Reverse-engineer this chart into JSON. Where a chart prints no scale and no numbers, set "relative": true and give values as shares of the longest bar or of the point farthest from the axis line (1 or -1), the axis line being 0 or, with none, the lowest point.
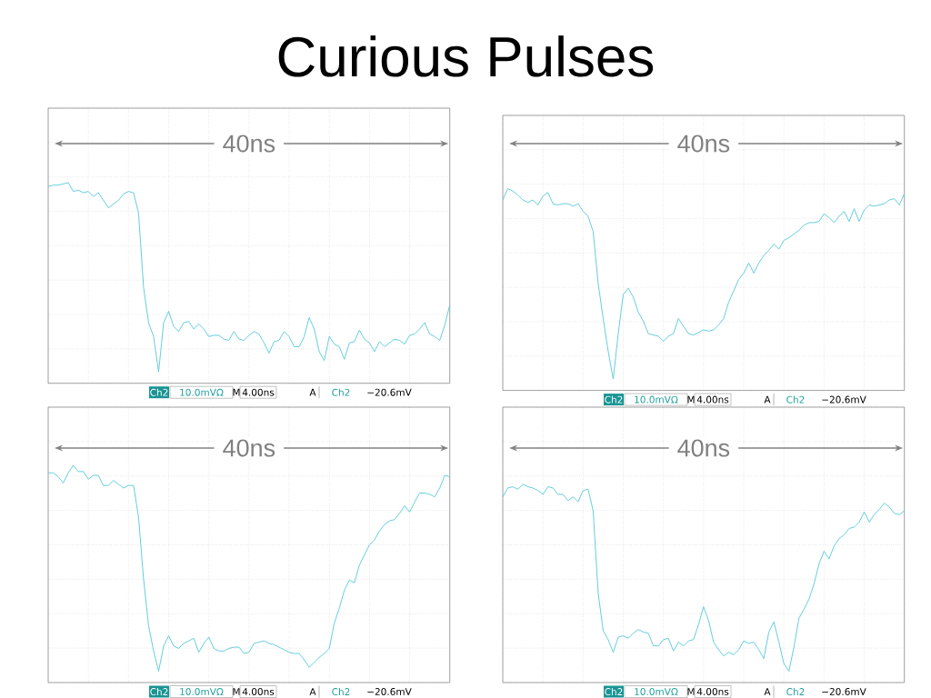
{
  "chart_data": [
    {
      "type": "line",
      "title": "Curious Pulses",
      "relative": true,
      "grid": true,
      "categories": [
        null,
        null,
        null,
        null,
        null,
        null,
        null,
        null,
        null,
        null,
        null,
        null,
        null,
        null,
        null,
        null,
        null,
        null,
        null,
        null,
        null,
        null,
        null,
        null,
        null,
        null,
        null,
        null,
        null,
        null,
        null,
        null,
        null,
        null,
        null,
        null,
        null,
        null,
        null,
        null,
        null,
        null,
        null,
        null,
        null,
        null,
        null,
        null,
        null,
        null,
        null,
        null,
        null,
        null,
        null,
        null,
        null,
        null,
        null,
        null,
        null,
        null,
        null,
        null,
        null,
        null,
        null,
        null,
        null,
        null,
        null,
        null,
        null,
        null,
        null,
        null,
        null,
        null,
        null,
        null,
        null
      ],
      "series": [
        {
          "color": "#55c8d8",
          "values": [
            0.47,
            0.48,
            0.48,
            0.49,
            0.5,
            0.43,
            0.44,
            0.42,
            0.43,
            0.39,
            0.42,
            0.36,
            0.3,
            0.33,
            0.36,
            0.41,
            0.43,
            0.42,
            0.26,
            -0.33,
            -0.61,
            -0.72,
            -1.0,
            -0.61,
            -0.52,
            -0.64,
            -0.68,
            -0.61,
            -0.6,
            -0.66,
            -0.62,
            -0.66,
            -0.72,
            -0.71,
            -0.71,
            -0.74,
            -0.75,
            -0.68,
            -0.74,
            -0.75,
            -0.71,
            -0.68,
            -0.7,
            -0.77,
            -0.85,
            -0.76,
            -0.75,
            -0.68,
            -0.72,
            -0.8,
            -0.8,
            -0.72,
            -0.57,
            -0.66,
            -0.84,
            -0.91,
            -0.72,
            -0.78,
            -0.8,
            -0.9,
            -0.77,
            -0.76,
            -0.67,
            -0.74,
            -0.77,
            -0.84,
            -0.76,
            -0.8,
            -0.77,
            -0.74,
            -0.75,
            -0.78,
            -0.71,
            -0.7,
            -0.66,
            -0.61,
            -0.7,
            -0.72,
            -0.75,
            -0.63,
            -0.47
          ]
        }
      ],
      "annotations": [
        "40ns",
        "Ch2",
        "10.0mVΩ",
        "M",
        "4.00ns",
        "A",
        "Ch2",
        "−20.6mV"
      ]
    },
    {
      "type": "line",
      "relative": true,
      "grid": true,
      "categories": [
        null,
        null,
        null,
        null,
        null,
        null,
        null,
        null,
        null,
        null,
        null,
        null,
        null,
        null,
        null,
        null,
        null,
        null,
        null,
        null,
        null,
        null,
        null,
        null,
        null,
        null,
        null,
        null,
        null,
        null,
        null,
        null,
        null,
        null,
        null,
        null,
        null,
        null,
        null,
        null,
        null,
        null,
        null,
        null,
        null,
        null,
        null,
        null,
        null,
        null,
        null,
        null,
        null,
        null,
        null,
        null,
        null,
        null,
        null,
        null,
        null,
        null,
        null,
        null,
        null,
        null,
        null,
        null,
        null,
        null,
        null,
        null,
        null,
        null,
        null,
        null,
        null,
        null,
        null,
        null,
        null
      ],
      "series": [
        {
          "color": "#55c8d8",
          "values": [
            0.42,
            0.51,
            0.49,
            0.46,
            0.42,
            0.4,
            0.42,
            0.38,
            0.45,
            0.48,
            0.39,
            0.38,
            0.39,
            0.39,
            0.37,
            0.39,
            0.33,
            0.29,
            0.17,
            -0.24,
            -0.52,
            -0.78,
            -1.0,
            -0.64,
            -0.33,
            -0.28,
            -0.35,
            -0.47,
            -0.54,
            -0.64,
            -0.65,
            -0.66,
            -0.7,
            -0.66,
            -0.64,
            -0.52,
            -0.58,
            -0.64,
            -0.65,
            -0.63,
            -0.61,
            -0.62,
            -0.61,
            -0.57,
            -0.52,
            -0.39,
            -0.3,
            -0.21,
            -0.16,
            -0.08,
            -0.16,
            -0.08,
            -0.02,
            0.02,
            0.07,
            0.03,
            0.1,
            0.12,
            0.15,
            0.18,
            0.22,
            0.24,
            0.24,
            0.25,
            0.31,
            0.28,
            0.24,
            0.29,
            0.33,
            0.25,
            0.35,
            0.25,
            0.34,
            0.38,
            0.37,
            0.38,
            0.39,
            0.42,
            0.43,
            0.38,
            0.47
          ]
        }
      ],
      "annotations": [
        "40ns",
        "Ch2",
        "10.0mVΩ",
        "M",
        "4.00ns",
        "A",
        "Ch2",
        "−20.6mV"
      ]
    },
    {
      "type": "line",
      "relative": true,
      "grid": true,
      "categories": [
        null,
        null,
        null,
        null,
        null,
        null,
        null,
        null,
        null,
        null,
        null,
        null,
        null,
        null,
        null,
        null,
        null,
        null,
        null,
        null,
        null,
        null,
        null,
        null,
        null,
        null,
        null,
        null,
        null,
        null,
        null,
        null,
        null,
        null,
        null,
        null,
        null,
        null,
        null,
        null,
        null,
        null,
        null,
        null,
        null,
        null,
        null,
        null,
        null,
        null,
        null,
        null,
        null,
        null,
        null,
        null,
        null,
        null,
        null,
        null,
        null,
        null,
        null,
        null,
        null,
        null,
        null,
        null,
        null,
        null,
        null,
        null,
        null,
        null,
        null,
        null,
        null,
        null,
        null,
        null,
        null
      ],
      "series": [
        {
          "color": "#55c8d8",
          "values": [
            0.57,
            0.57,
            0.54,
            0.49,
            0.57,
            0.63,
            0.58,
            0.58,
            0.52,
            0.55,
            0.55,
            0.47,
            0.47,
            0.51,
            0.48,
            0.45,
            0.47,
            0.47,
            0.22,
            -0.27,
            -0.64,
            -0.84,
            -1.0,
            -0.8,
            -0.72,
            -0.8,
            -0.82,
            -0.78,
            -0.76,
            -0.74,
            -0.85,
            -0.78,
            -0.73,
            -0.82,
            -0.84,
            -0.84,
            -0.82,
            -0.81,
            -0.81,
            -0.86,
            -0.85,
            -0.78,
            -0.77,
            -0.76,
            -0.78,
            -0.79,
            -0.81,
            -0.83,
            -0.85,
            -0.86,
            -0.86,
            -0.91,
            -0.97,
            -0.93,
            -0.89,
            -0.86,
            -0.82,
            -0.62,
            -0.5,
            -0.36,
            -0.28,
            -0.3,
            -0.16,
            -0.08,
            0.0,
            0.04,
            0.11,
            0.16,
            0.19,
            0.2,
            0.25,
            0.31,
            0.26,
            0.34,
            0.41,
            0.41,
            0.4,
            0.38,
            0.45,
            0.55,
            0.54
          ]
        }
      ],
      "annotations": [
        "40ns",
        "Ch2",
        "10.0mVΩ",
        "M",
        "4.00ns",
        "A",
        "Ch2",
        "−20.6mV"
      ]
    },
    {
      "type": "line",
      "relative": true,
      "grid": true,
      "categories": [
        null,
        null,
        null,
        null,
        null,
        null,
        null,
        null,
        null,
        null,
        null,
        null,
        null,
        null,
        null,
        null,
        null,
        null,
        null,
        null,
        null,
        null,
        null,
        null,
        null,
        null,
        null,
        null,
        null,
        null,
        null,
        null,
        null,
        null,
        null,
        null,
        null,
        null,
        null,
        null,
        null,
        null,
        null,
        null,
        null,
        null,
        null,
        null,
        null,
        null,
        null,
        null,
        null,
        null,
        null,
        null,
        null,
        null,
        null,
        null,
        null,
        null,
        null,
        null,
        null,
        null,
        null,
        null,
        null,
        null,
        null,
        null,
        null,
        null,
        null,
        null,
        null,
        null,
        null,
        null,
        null
      ],
      "series": [
        {
          "color": "#55c8d8",
          "values": [
            0.38,
            0.45,
            0.46,
            0.44,
            0.48,
            0.46,
            0.45,
            0.43,
            0.4,
            0.46,
            0.45,
            0.4,
            0.4,
            0.35,
            0.38,
            0.34,
            0.43,
            0.44,
            0.27,
            -0.38,
            -0.68,
            -0.75,
            -0.85,
            -0.73,
            -0.72,
            -0.74,
            -0.7,
            -0.67,
            -0.69,
            -0.7,
            -0.8,
            -0.8,
            -0.75,
            -0.74,
            -0.84,
            -0.77,
            -0.8,
            -0.76,
            -0.75,
            -0.63,
            -0.49,
            -0.6,
            -0.77,
            -0.83,
            -0.88,
            -0.85,
            -0.87,
            -0.83,
            -0.76,
            -0.78,
            -0.77,
            -0.83,
            -0.9,
            -0.69,
            -0.61,
            -0.77,
            -0.94,
            -1.0,
            -0.81,
            -0.58,
            -0.51,
            -0.43,
            -0.31,
            -0.15,
            -0.05,
            -0.11,
            -0.01,
            0.05,
            0.08,
            0.13,
            0.14,
            0.18,
            0.26,
            0.18,
            0.24,
            0.28,
            0.33,
            0.3,
            0.25,
            0.24,
            0.27
          ]
        }
      ],
      "annotations": [
        "40ns",
        "Ch2",
        "10.0mVΩ",
        "M",
        "4.00ns",
        "A",
        "Ch2",
        "−20.6mV"
      ]
    }
  ]
}
